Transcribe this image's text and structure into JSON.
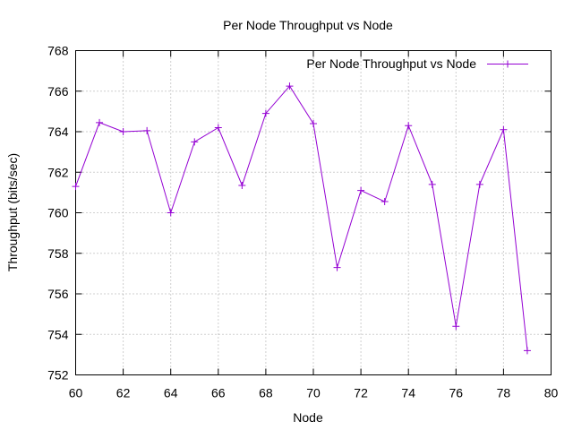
{
  "chart_data": {
    "type": "line",
    "title": "Per Node Throughput vs Node",
    "xlabel": "Node",
    "ylabel": "Throughput (bits/sec)",
    "xlim": [
      60,
      80
    ],
    "ylim": [
      752,
      768
    ],
    "xticks": [
      60,
      62,
      64,
      66,
      68,
      70,
      72,
      74,
      76,
      78,
      80
    ],
    "yticks": [
      752,
      754,
      756,
      758,
      760,
      762,
      764,
      766,
      768
    ],
    "grid": true,
    "legend_position": "top-right",
    "series": [
      {
        "name": "Per Node Throughput vs Node",
        "color": "#9400d3",
        "marker": "plus",
        "x": [
          60,
          61,
          62,
          63,
          64,
          65,
          66,
          67,
          68,
          69,
          70,
          71,
          72,
          73,
          74,
          75,
          76,
          77,
          78,
          79
        ],
        "y": [
          761.3,
          764.45,
          764.0,
          764.05,
          760.0,
          763.5,
          764.2,
          761.35,
          764.9,
          766.25,
          764.4,
          757.3,
          761.1,
          760.55,
          764.3,
          761.4,
          754.4,
          761.4,
          764.1,
          753.2
        ]
      }
    ]
  }
}
